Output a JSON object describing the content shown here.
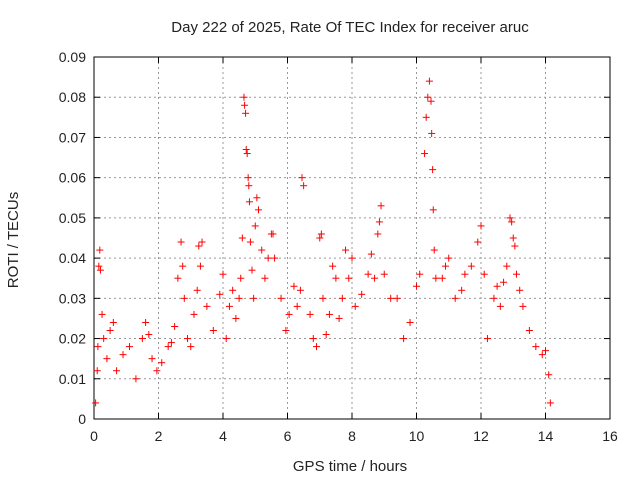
{
  "chart_data": {
    "type": "scatter",
    "title": "Day 222 of 2025, Rate Of TEC Index for receiver aruc",
    "xlabel": "GPS time / hours",
    "ylabel": "ROTI / TECUs",
    "xlim": [
      0,
      16
    ],
    "ylim": [
      0,
      0.09
    ],
    "x_ticks": [
      "0",
      "2",
      "4",
      "6",
      "8",
      "10",
      "12",
      "14",
      "16"
    ],
    "y_ticks": [
      "0",
      "0.01",
      "0.02",
      "0.03",
      "0.04",
      "0.05",
      "0.06",
      "0.07",
      "0.08",
      "0.09"
    ],
    "grid": true,
    "marker": "+",
    "color": "#ff0000",
    "series": [
      {
        "points": [
          [
            0.05,
            0.004
          ],
          [
            0.1,
            0.012
          ],
          [
            0.12,
            0.018
          ],
          [
            0.15,
            0.038
          ],
          [
            0.18,
            0.042
          ],
          [
            0.2,
            0.037
          ],
          [
            0.25,
            0.026
          ],
          [
            0.3,
            0.02
          ],
          [
            0.4,
            0.015
          ],
          [
            0.5,
            0.022
          ],
          [
            0.6,
            0.024
          ],
          [
            0.7,
            0.012
          ],
          [
            0.9,
            0.016
          ],
          [
            1.1,
            0.018
          ],
          [
            1.3,
            0.01
          ],
          [
            1.5,
            0.02
          ],
          [
            1.6,
            0.024
          ],
          [
            1.7,
            0.021
          ],
          [
            1.8,
            0.015
          ],
          [
            1.95,
            0.012
          ],
          [
            2.1,
            0.014
          ],
          [
            2.3,
            0.018
          ],
          [
            2.4,
            0.019
          ],
          [
            2.5,
            0.023
          ],
          [
            2.6,
            0.035
          ],
          [
            2.7,
            0.044
          ],
          [
            2.75,
            0.038
          ],
          [
            2.8,
            0.03
          ],
          [
            2.9,
            0.02
          ],
          [
            3.0,
            0.018
          ],
          [
            3.1,
            0.026
          ],
          [
            3.2,
            0.032
          ],
          [
            3.25,
            0.043
          ],
          [
            3.3,
            0.038
          ],
          [
            3.35,
            0.044
          ],
          [
            3.5,
            0.028
          ],
          [
            3.7,
            0.022
          ],
          [
            3.9,
            0.031
          ],
          [
            4.0,
            0.036
          ],
          [
            4.1,
            0.02
          ],
          [
            4.2,
            0.028
          ],
          [
            4.3,
            0.032
          ],
          [
            4.4,
            0.025
          ],
          [
            4.5,
            0.03
          ],
          [
            4.55,
            0.035
          ],
          [
            4.6,
            0.045
          ],
          [
            4.65,
            0.08
          ],
          [
            4.67,
            0.078
          ],
          [
            4.7,
            0.076
          ],
          [
            4.72,
            0.067
          ],
          [
            4.75,
            0.066
          ],
          [
            4.78,
            0.06
          ],
          [
            4.8,
            0.058
          ],
          [
            4.82,
            0.054
          ],
          [
            4.85,
            0.044
          ],
          [
            4.9,
            0.037
          ],
          [
            4.95,
            0.03
          ],
          [
            5.0,
            0.048
          ],
          [
            5.05,
            0.055
          ],
          [
            5.1,
            0.052
          ],
          [
            5.2,
            0.042
          ],
          [
            5.3,
            0.035
          ],
          [
            5.4,
            0.04
          ],
          [
            5.5,
            0.046
          ],
          [
            5.55,
            0.046
          ],
          [
            5.6,
            0.04
          ],
          [
            5.8,
            0.03
          ],
          [
            5.95,
            0.022
          ],
          [
            6.05,
            0.026
          ],
          [
            6.2,
            0.033
          ],
          [
            6.3,
            0.028
          ],
          [
            6.4,
            0.032
          ],
          [
            6.45,
            0.06
          ],
          [
            6.5,
            0.058
          ],
          [
            6.7,
            0.026
          ],
          [
            6.8,
            0.02
          ],
          [
            6.9,
            0.018
          ],
          [
            7.0,
            0.045
          ],
          [
            7.05,
            0.046
          ],
          [
            7.1,
            0.03
          ],
          [
            7.2,
            0.021
          ],
          [
            7.3,
            0.026
          ],
          [
            7.4,
            0.038
          ],
          [
            7.5,
            0.035
          ],
          [
            7.6,
            0.025
          ],
          [
            7.7,
            0.03
          ],
          [
            7.8,
            0.042
          ],
          [
            7.9,
            0.035
          ],
          [
            8.0,
            0.04
          ],
          [
            8.1,
            0.028
          ],
          [
            8.3,
            0.031
          ],
          [
            8.5,
            0.036
          ],
          [
            8.6,
            0.041
          ],
          [
            8.7,
            0.035
          ],
          [
            8.8,
            0.046
          ],
          [
            8.85,
            0.049
          ],
          [
            8.9,
            0.053
          ],
          [
            9.0,
            0.036
          ],
          [
            9.2,
            0.03
          ],
          [
            9.4,
            0.03
          ],
          [
            9.6,
            0.02
          ],
          [
            9.8,
            0.024
          ],
          [
            10.0,
            0.033
          ],
          [
            10.1,
            0.036
          ],
          [
            10.25,
            0.066
          ],
          [
            10.3,
            0.075
          ],
          [
            10.35,
            0.08
          ],
          [
            10.4,
            0.084
          ],
          [
            10.45,
            0.079
          ],
          [
            10.47,
            0.071
          ],
          [
            10.5,
            0.062
          ],
          [
            10.52,
            0.052
          ],
          [
            10.55,
            0.042
          ],
          [
            10.6,
            0.035
          ],
          [
            10.8,
            0.035
          ],
          [
            10.9,
            0.038
          ],
          [
            11.0,
            0.04
          ],
          [
            11.2,
            0.03
          ],
          [
            11.4,
            0.032
          ],
          [
            11.5,
            0.036
          ],
          [
            11.7,
            0.038
          ],
          [
            11.9,
            0.044
          ],
          [
            12.0,
            0.048
          ],
          [
            12.1,
            0.036
          ],
          [
            12.2,
            0.02
          ],
          [
            12.4,
            0.03
          ],
          [
            12.5,
            0.033
          ],
          [
            12.6,
            0.028
          ],
          [
            12.7,
            0.034
          ],
          [
            12.8,
            0.038
          ],
          [
            12.9,
            0.05
          ],
          [
            12.95,
            0.049
          ],
          [
            13.0,
            0.045
          ],
          [
            13.05,
            0.043
          ],
          [
            13.1,
            0.036
          ],
          [
            13.2,
            0.032
          ],
          [
            13.3,
            0.028
          ],
          [
            13.5,
            0.022
          ],
          [
            13.7,
            0.018
          ],
          [
            13.9,
            0.016
          ],
          [
            14.0,
            0.017
          ],
          [
            14.1,
            0.011
          ],
          [
            14.15,
            0.004
          ]
        ]
      }
    ]
  }
}
